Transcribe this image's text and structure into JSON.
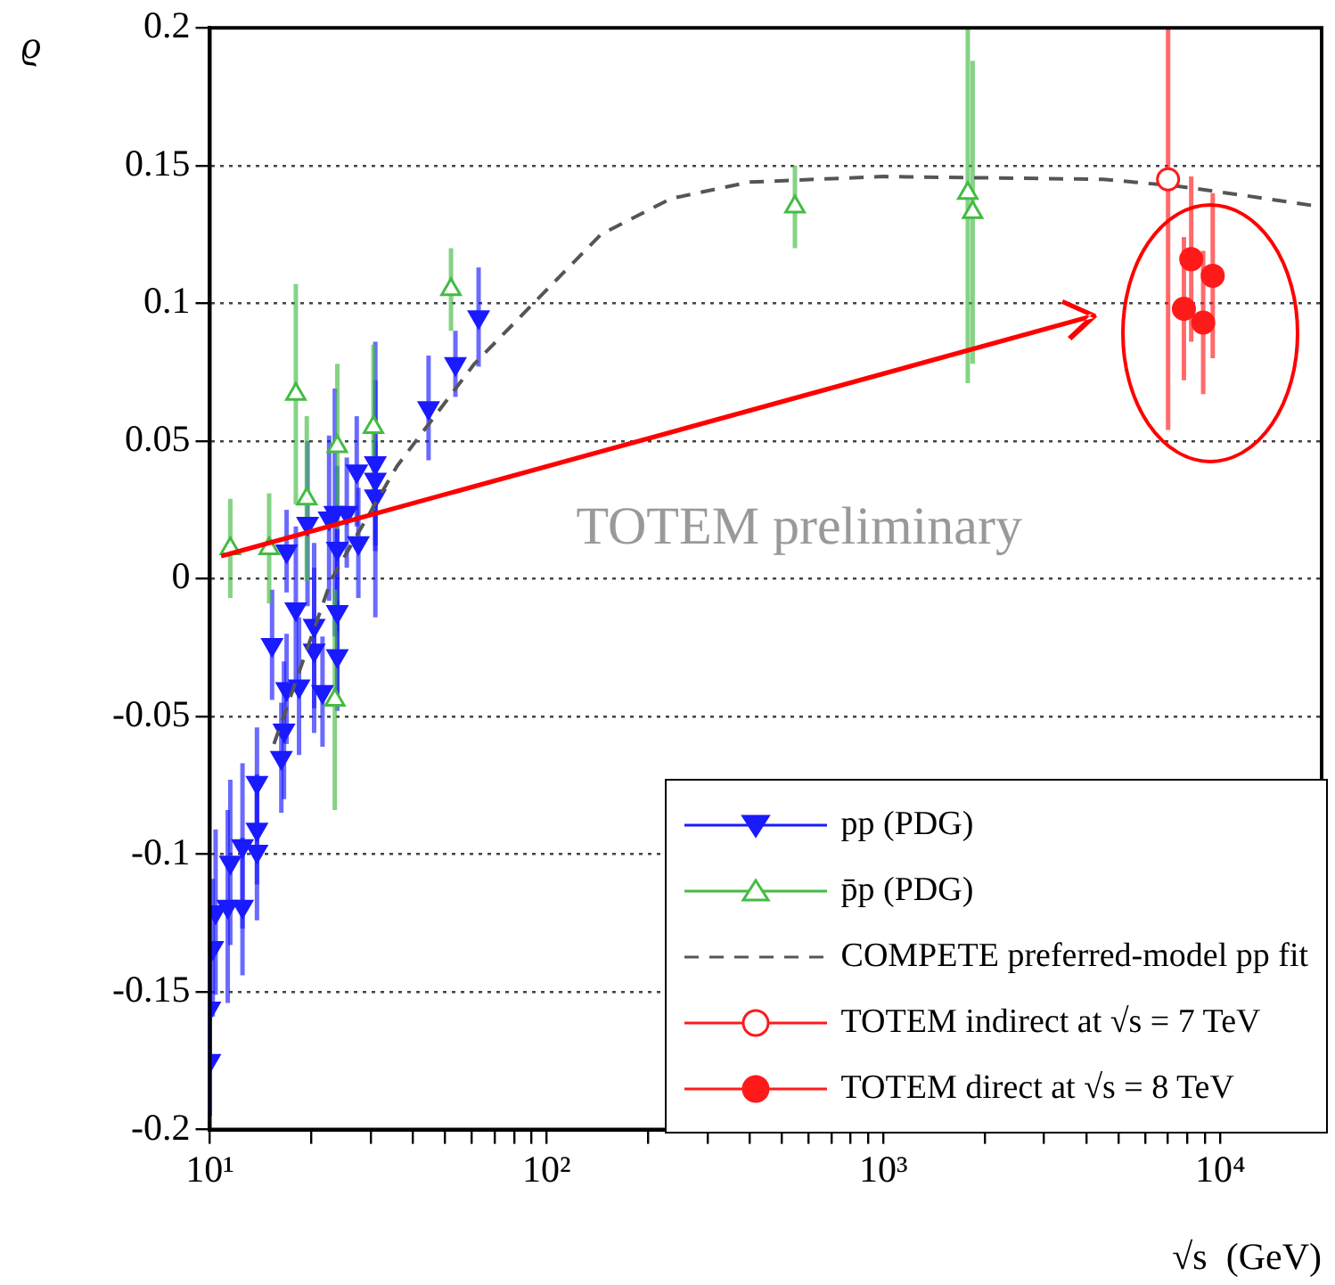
{
  "chart_data": {
    "type": "scatter",
    "xlabel": "√s  (GeV)",
    "ylabel": "ϱ",
    "log": "x",
    "grid": "y",
    "legend": "bottom right",
    "xlim": [
      10,
      20000
    ],
    "ylim": [
      -0.2,
      0.2
    ],
    "xticks": [
      {
        "value": 10,
        "label": "10¹"
      },
      {
        "value": 20,
        "label": null
      },
      {
        "value": 30,
        "label": null
      },
      {
        "value": 40,
        "label": null
      },
      {
        "value": 50,
        "label": null
      },
      {
        "value": 60,
        "label": null
      },
      {
        "value": 70,
        "label": null
      },
      {
        "value": 80,
        "label": null
      },
      {
        "value": 90,
        "label": null
      },
      {
        "value": 100,
        "label": "10²"
      },
      {
        "value": 200,
        "label": null
      },
      {
        "value": 300,
        "label": null
      },
      {
        "value": 400,
        "label": null
      },
      {
        "value": 500,
        "label": null
      },
      {
        "value": 600,
        "label": null
      },
      {
        "value": 700,
        "label": null
      },
      {
        "value": 800,
        "label": null
      },
      {
        "value": 900,
        "label": null
      },
      {
        "value": 1000,
        "label": "10³"
      },
      {
        "value": 2000,
        "label": null
      },
      {
        "value": 3000,
        "label": null
      },
      {
        "value": 4000,
        "label": null
      },
      {
        "value": 5000,
        "label": null
      },
      {
        "value": 6000,
        "label": null
      },
      {
        "value": 7000,
        "label": null
      },
      {
        "value": 8000,
        "label": null
      },
      {
        "value": 9000,
        "label": null
      },
      {
        "value": 10000,
        "label": "10⁴"
      }
    ],
    "yticks": [
      -0.2,
      -0.15,
      -0.1,
      -0.05,
      0,
      0.05,
      0.1,
      0.15,
      0.2
    ],
    "annotations": [
      "TOTEM preliminary"
    ],
    "series": [
      {
        "name": "pp (PDG)",
        "type": "scatter",
        "marker": "triangle",
        "color": "#1a1aff",
        "x": [
          10,
          10,
          10.2,
          10.4,
          11.3,
          11.5,
          12.5,
          12.5,
          13.8,
          13.8,
          13.8,
          15.3,
          16.3,
          16.6,
          16.9,
          18,
          18.4,
          16.9,
          19.5,
          20.4,
          20.4,
          21.6,
          22.6,
          23.5,
          23.9,
          23.9,
          23.9,
          25.5,
          27.3,
          27.6,
          31,
          31,
          31,
          44.6,
          53.6,
          62.8
        ],
        "values": [
          -0.175,
          -0.156,
          -0.134,
          -0.121,
          -0.119,
          -0.103,
          -0.097,
          -0.119,
          -0.074,
          -0.091,
          -0.099,
          -0.024,
          -0.065,
          -0.055,
          0.01,
          -0.011,
          -0.039,
          -0.04,
          0.02,
          -0.017,
          -0.026,
          -0.041,
          0.022,
          0.024,
          0.011,
          -0.012,
          -0.028,
          0.024,
          0.039,
          0.013,
          0.042,
          0.036,
          0.03,
          0.062,
          0.078,
          0.095
        ],
        "errors": [
          0.02,
          0.02,
          0.025,
          0.03,
          0.035,
          0.03,
          0.03,
          0.025,
          0.02,
          0.02,
          0.025,
          0.02,
          0.02,
          0.025,
          0.015,
          0.03,
          0.025,
          0.02,
          0.03,
          0.03,
          0.03,
          0.02,
          0.03,
          0.045,
          0.03,
          0.03,
          0.02,
          0.02,
          0.02,
          0.02,
          0.03,
          0.05,
          0.02,
          0.019,
          0.012,
          0.018
        ]
      },
      {
        "name": "p̄p (PDG)",
        "type": "scatter",
        "marker": "triangle",
        "color": "#44bb44",
        "x": [
          11.5,
          15,
          18,
          19.4,
          23.9,
          30.6,
          23.5,
          52,
          546,
          1780,
          1840
        ],
        "values": [
          0.011,
          0.011,
          0.067,
          0.029,
          0.048,
          0.055,
          -0.044,
          0.105,
          0.135,
          0.14,
          0.133
        ],
        "errors": [
          0.018,
          0.02,
          0.04,
          0.03,
          0.03,
          0.03,
          0.04,
          0.015,
          0.015,
          [
            0.071,
            0.2
          ],
          0.055
        ]
      },
      {
        "name": "COMPETE preferred-model pp fit",
        "type": "line",
        "marker": "none",
        "line_style": "dashed",
        "color": "#555555",
        "x": [
          15.5,
          23,
          36,
          61,
          104,
          145,
          234,
          400,
          1000,
          4500,
          7500,
          12000,
          20000
        ],
        "values": [
          -0.06,
          0,
          0.041,
          0.078,
          0.107,
          0.125,
          0.138,
          0.144,
          0.146,
          0.145,
          0.1425,
          0.139,
          0.135
        ]
      },
      {
        "name": "TOTEM indirect at √s = 7 TeV",
        "type": "scatter",
        "marker": "circle",
        "color": "#ff1a1a",
        "x": [
          7000
        ],
        "values": [
          0.145
        ],
        "errors": [
          [
            0.054,
            0.2
          ]
        ]
      },
      {
        "name": "TOTEM direct at √s = 8 TeV",
        "type": "scatter",
        "marker": "circle",
        "color": "#ff1a1a",
        "x": [
          7800,
          8200,
          8900,
          9500
        ],
        "values": [
          0.098,
          0.116,
          0.093,
          0.11
        ],
        "errors": [
          0.026,
          0.03,
          0.026,
          0.03
        ]
      }
    ]
  }
}
